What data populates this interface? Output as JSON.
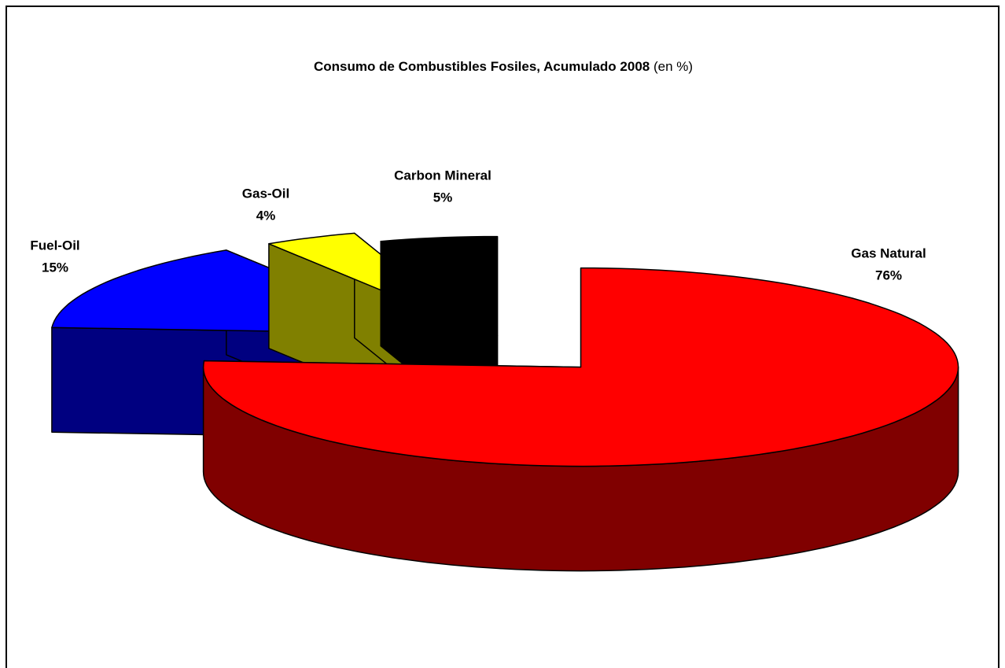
{
  "chart_data": {
    "type": "pie3d",
    "title": "Consumo de Combustibles Fosiles, Acumulado 2008",
    "subtitle": "(en %)",
    "categories": [
      "Gas Natural",
      "Fuel-Oil",
      "Gas-Oil",
      "Carbon Mineral"
    ],
    "values": [
      76,
      15,
      4,
      5
    ],
    "value_labels": [
      "76%",
      "15%",
      "4%",
      "5%"
    ],
    "colors": [
      "#ff0000",
      "#0000ff",
      "#ffff00",
      "#000000"
    ],
    "side_colors": [
      "#800000",
      "#000080",
      "#808000",
      "#000000"
    ]
  }
}
